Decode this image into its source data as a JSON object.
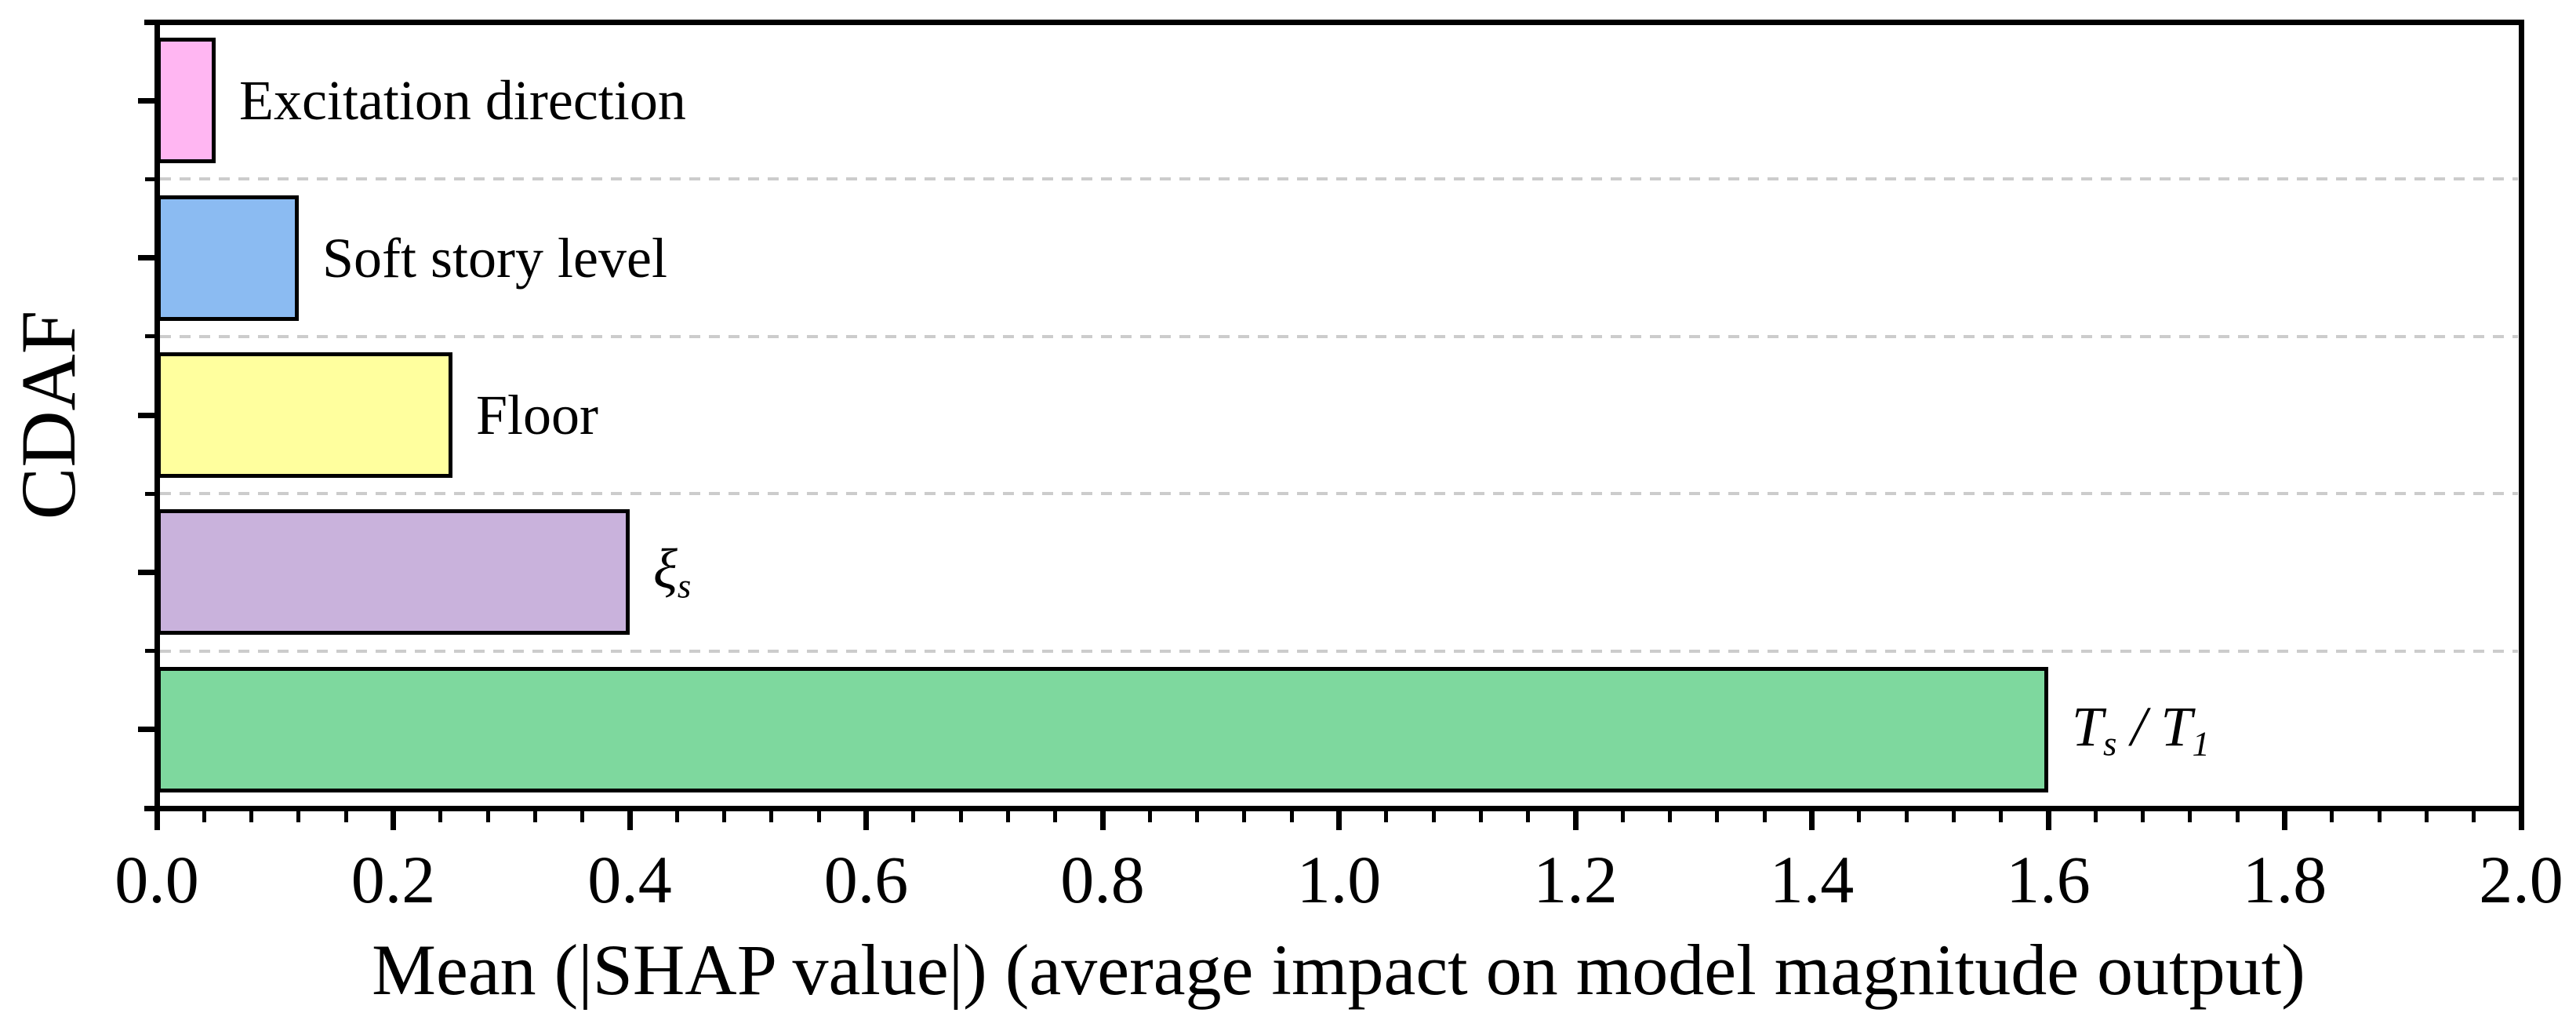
{
  "figure": {
    "background": "#ffffff",
    "frame_color": "#000000",
    "grid_color": "#cccccc",
    "text_color": "#000000"
  },
  "chart_data": {
    "type": "bar",
    "orientation": "horizontal",
    "title": "",
    "xlabel": "Mean (|SHAP value|) (average impact on model magnitude output)",
    "ylabel": "CDAF",
    "xlim": [
      0.0,
      2.0
    ],
    "x_major_ticks": [
      "0.0",
      "0.2",
      "0.4",
      "0.6",
      "0.8",
      "1.0",
      "1.2",
      "1.4",
      "1.6",
      "1.8",
      "2.0"
    ],
    "x_minor_tick_step": 0.04,
    "grid": "dashed horizontal lines between category bands",
    "legend": "none",
    "categories": [
      "Excitation direction",
      "Soft story level",
      "Floor",
      "ξs",
      "Ts / T1"
    ],
    "values": [
      0.05,
      0.12,
      0.25,
      0.4,
      1.6
    ],
    "bar_colors": [
      "#ffb6f2",
      "#8bbbf2",
      "#ffff9e",
      "#c9b2dc",
      "#7ed89e"
    ],
    "bar_edge_color": "#000000",
    "labels_rich": [
      [
        {
          "t": "Excitation direction"
        }
      ],
      [
        {
          "t": "Soft story level"
        }
      ],
      [
        {
          "t": "Floor"
        }
      ],
      [
        {
          "t": "ξ",
          "i": true
        },
        {
          "t": "s",
          "sub": true
        }
      ],
      [
        {
          "t": "T",
          "i": true
        },
        {
          "t": "s",
          "sub": true
        },
        {
          "t": " / ",
          "i": true
        },
        {
          "t": "T",
          "i": true
        },
        {
          "t": "1",
          "sub": true
        }
      ]
    ]
  }
}
